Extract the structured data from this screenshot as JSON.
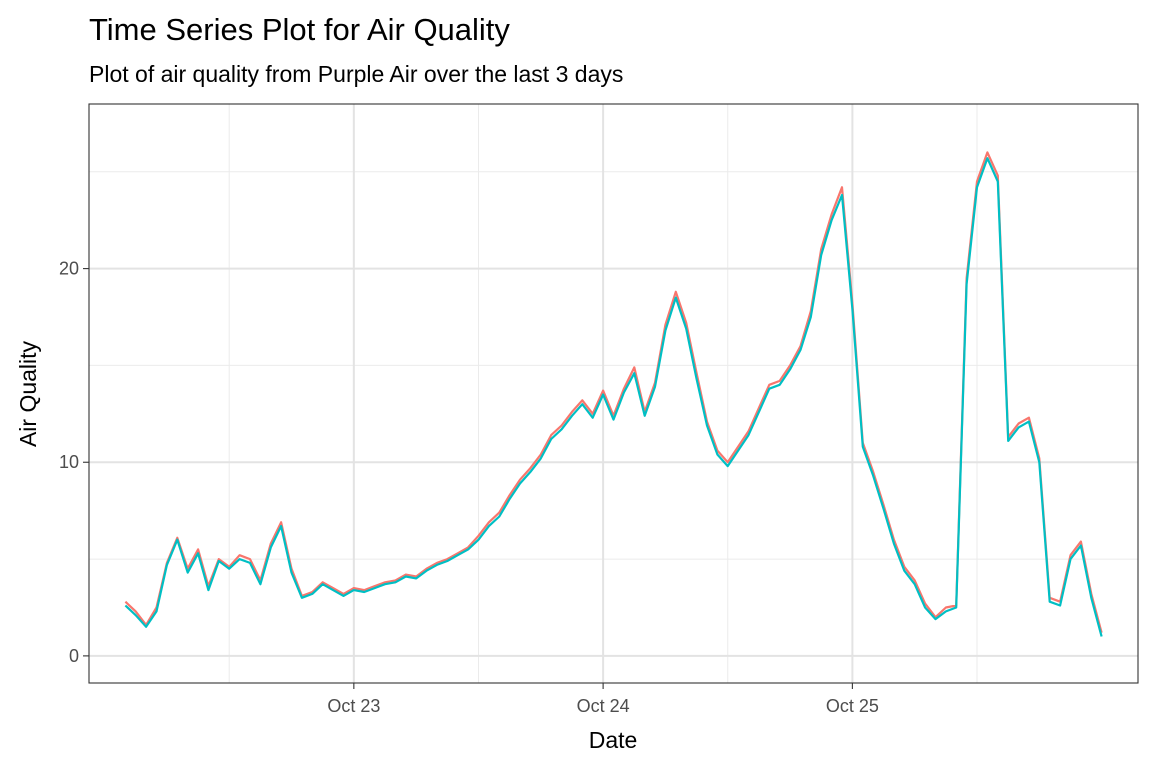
{
  "chart_data": {
    "type": "line",
    "title": "Time Series Plot for Air Quality",
    "subtitle": "Plot of air quality from Purple Air over the last 3 days",
    "xlabel": "Date",
    "ylabel": "Air Quality",
    "x_tick_labels": [
      "Oct 23",
      "Oct 24",
      "Oct 25"
    ],
    "y_tick_labels": [
      "0",
      "10",
      "20"
    ],
    "y_ticks": [
      0,
      10,
      20
    ],
    "ylim": [
      -1.4,
      28.5
    ],
    "grid": true,
    "legend": "none",
    "colors": {
      "series_a": "#F8766D",
      "series_b": "#00BFC4"
    },
    "x_hours": [
      -22.0,
      -21.0,
      -20.0,
      -19.0,
      -18.0,
      -17.0,
      -16.0,
      -15.0,
      -14.0,
      -13.0,
      -12.0,
      -11.0,
      -10.0,
      -9.0,
      -8.0,
      -7.0,
      -6.0,
      -5.0,
      -4.0,
      -3.0,
      -2.0,
      -1.0,
      0.0,
      1.0,
      2.0,
      3.0,
      4.0,
      5.0,
      6.0,
      7.0,
      8.0,
      9.0,
      10.0,
      11.0,
      12.0,
      13.0,
      14.0,
      15.0,
      16.0,
      17.0,
      18.0,
      19.0,
      20.0,
      21.0,
      22.0,
      23.0,
      24.0,
      25.0,
      26.0,
      27.0,
      28.0,
      29.0,
      30.0,
      31.0,
      32.0,
      33.0,
      34.0,
      35.0,
      36.0,
      37.0,
      38.0,
      39.0,
      40.0,
      41.0,
      42.0,
      43.0,
      44.0,
      45.0,
      46.0,
      47.0,
      48.0,
      49.0,
      50.0,
      51.0,
      52.0,
      53.0,
      54.0,
      55.0,
      56.0,
      57.0,
      58.0,
      59.0,
      60.0,
      61.0,
      62.0,
      63.0,
      64.0,
      65.0,
      66.0,
      67.0,
      68.0,
      69.0,
      70.0,
      71.0,
      72.0
    ],
    "x_tick_hours": [
      0,
      24,
      48
    ],
    "xlim_hours": [
      -25.5,
      75.5
    ],
    "series": [
      {
        "color": "#F8766D",
        "values": [
          2.8,
          2.3,
          1.6,
          2.5,
          4.8,
          6.1,
          4.5,
          5.5,
          3.6,
          5.0,
          4.6,
          5.2,
          5.0,
          3.9,
          5.8,
          6.9,
          4.5,
          3.1,
          3.3,
          3.8,
          3.5,
          3.2,
          3.5,
          3.4,
          3.6,
          3.8,
          3.9,
          4.2,
          4.1,
          4.5,
          4.8,
          5.0,
          5.3,
          5.6,
          6.2,
          6.9,
          7.4,
          8.3,
          9.1,
          9.7,
          10.4,
          11.4,
          11.9,
          12.6,
          13.2,
          12.5,
          13.7,
          12.4,
          13.8,
          14.9,
          12.6,
          14.1,
          17.1,
          18.8,
          17.2,
          14.6,
          12.1,
          10.6,
          10.0,
          10.8,
          11.6,
          12.8,
          14.0,
          14.2,
          15.0,
          16.0,
          17.8,
          21.0,
          22.8,
          24.2,
          18.2,
          11.0,
          9.5,
          7.8,
          6.0,
          4.6,
          3.9,
          2.7,
          2.0,
          2.5,
          2.6,
          19.5,
          24.5,
          26.0,
          24.8,
          11.3,
          12.0,
          12.3,
          10.2,
          3.0,
          2.8,
          5.2,
          5.9,
          3.2,
          1.2
        ]
      },
      {
        "color": "#00BFC4",
        "values": [
          2.6,
          2.1,
          1.5,
          2.3,
          4.7,
          6.0,
          4.3,
          5.3,
          3.4,
          4.9,
          4.5,
          5.0,
          4.8,
          3.7,
          5.6,
          6.7,
          4.3,
          3.0,
          3.2,
          3.7,
          3.4,
          3.1,
          3.4,
          3.3,
          3.5,
          3.7,
          3.8,
          4.1,
          4.0,
          4.4,
          4.7,
          4.9,
          5.2,
          5.5,
          6.0,
          6.7,
          7.2,
          8.1,
          8.9,
          9.5,
          10.2,
          11.2,
          11.7,
          12.4,
          13.0,
          12.3,
          13.5,
          12.2,
          13.6,
          14.6,
          12.4,
          13.9,
          16.8,
          18.5,
          16.9,
          14.3,
          11.9,
          10.4,
          9.8,
          10.6,
          11.4,
          12.6,
          13.8,
          14.0,
          14.8,
          15.8,
          17.5,
          20.7,
          22.5,
          23.8,
          17.9,
          10.8,
          9.3,
          7.6,
          5.8,
          4.4,
          3.7,
          2.5,
          1.9,
          2.3,
          2.5,
          19.2,
          24.2,
          25.7,
          24.5,
          11.1,
          11.8,
          12.1,
          10.0,
          2.8,
          2.6,
          5.0,
          5.7,
          3.0,
          1.0
        ]
      }
    ]
  }
}
